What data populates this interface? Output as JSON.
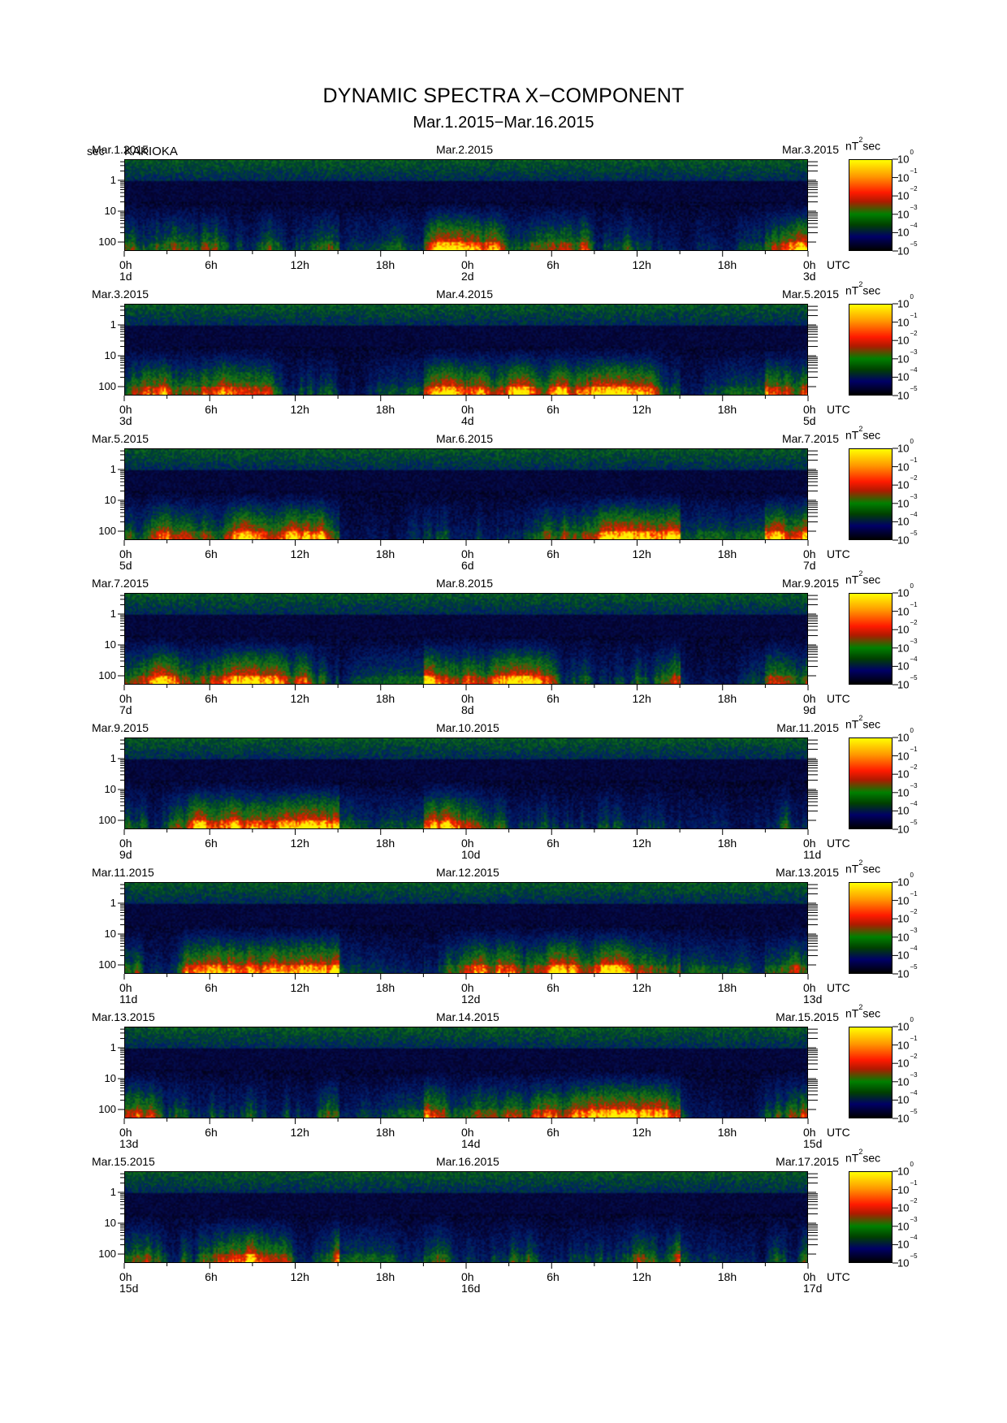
{
  "title": "DYNAMIC SPECTRA X−COMPONENT",
  "subtitle": "Mar.1.2015−Mar.16.2015",
  "y_unit": "sec",
  "station": "KAKIOKA",
  "colorbar_unit": "nT",
  "colorbar_unit_sup": "2",
  "colorbar_unit_tail": "sec",
  "utc_label": "UTC",
  "colors": {
    "background": "#ffffff",
    "axis": "#000000",
    "low": "#000000",
    "mid": "#008000",
    "high": "#ff1a00",
    "max": "#ffff00"
  },
  "chart_data": {
    "type": "heatmap",
    "title": "DYNAMIC SPECTRA X−COMPONENT",
    "ylabel": "sec",
    "y_ticks": [
      "1",
      "10",
      "100"
    ],
    "y_scale": "log",
    "x_ticks": [
      "0h",
      "6h",
      "12h",
      "18h",
      "0h",
      "6h",
      "12h",
      "18h",
      "0h"
    ],
    "colorbar": {
      "unit": "nT²sec",
      "scale": "log",
      "range": [
        1e-05,
        1
      ],
      "tick_base": "10",
      "tick_exponents": [
        "0",
        "−1",
        "−2",
        "−3",
        "−4",
        "−5"
      ]
    },
    "panels": [
      {
        "left_date": "Mar.1.2015",
        "mid_date": "Mar.2.2015",
        "right_date": "Mar.3.2015",
        "day_labels": [
          "1d",
          "2d",
          "3d"
        ]
      },
      {
        "left_date": "Mar.3.2015",
        "mid_date": "Mar.4.2015",
        "right_date": "Mar.5.2015",
        "day_labels": [
          "3d",
          "4d",
          "5d"
        ]
      },
      {
        "left_date": "Mar.5.2015",
        "mid_date": "Mar.6.2015",
        "right_date": "Mar.7.2015",
        "day_labels": [
          "5d",
          "6d",
          "7d"
        ]
      },
      {
        "left_date": "Mar.7.2015",
        "mid_date": "Mar.8.2015",
        "right_date": "Mar.9.2015",
        "day_labels": [
          "7d",
          "8d",
          "9d"
        ]
      },
      {
        "left_date": "Mar.9.2015",
        "mid_date": "Mar.10.2015",
        "right_date": "Mar.11.2015",
        "day_labels": [
          "9d",
          "10d",
          "11d"
        ]
      },
      {
        "left_date": "Mar.11.2015",
        "mid_date": "Mar.12.2015",
        "right_date": "Mar.13.2015",
        "day_labels": [
          "11d",
          "12d",
          "13d"
        ]
      },
      {
        "left_date": "Mar.13.2015",
        "mid_date": "Mar.14.2015",
        "right_date": "Mar.15.2015",
        "day_labels": [
          "13d",
          "14d",
          "15d"
        ]
      },
      {
        "left_date": "Mar.15.2015",
        "mid_date": "Mar.16.2015",
        "right_date": "Mar.17.2015",
        "day_labels": [
          "15d",
          "16d",
          "17d"
        ]
      }
    ]
  }
}
